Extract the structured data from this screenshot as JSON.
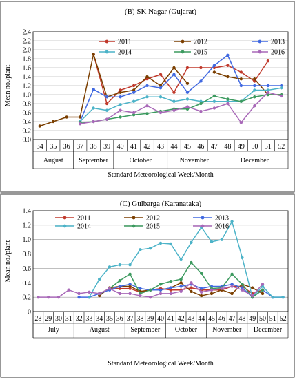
{
  "chart_data": [
    {
      "type": "line",
      "title": "(B) SK Nagar (Gujarat)",
      "xlabel": "Standard Meteorological Week/Month",
      "ylabel": "Mean no./plant",
      "ylim": [
        0,
        2.4
      ],
      "yticks": [
        "0.0",
        "0.2",
        "0.4",
        "0.6",
        "0.8",
        "1.0",
        "1.2",
        "1.4",
        "1.6",
        "1.8",
        "2.0",
        "2.2",
        "2.4"
      ],
      "x": [
        "34",
        "35",
        "36",
        "37",
        "38",
        "39",
        "40",
        "41",
        "42",
        "43",
        "44",
        "45",
        "46",
        "47",
        "48",
        "49",
        "50",
        "51",
        "52"
      ],
      "months": [
        {
          "label": "August",
          "from": 0,
          "to": 3
        },
        {
          "label": "September",
          "from": 3,
          "to": 6
        },
        {
          "label": "October",
          "from": 6,
          "to": 10
        },
        {
          "label": "November",
          "from": 10,
          "to": 14
        },
        {
          "label": "December",
          "from": 14,
          "to": 19
        }
      ],
      "grid": true,
      "legend_position": "top",
      "series": [
        {
          "name": "2011",
          "color": "#c0392b",
          "values": [
            null,
            null,
            null,
            null,
            1.9,
            0.8,
            1.1,
            1.2,
            1.35,
            1.45,
            1.05,
            1.6,
            1.6,
            1.6,
            1.65,
            1.5,
            1.3,
            1.75,
            null
          ]
        },
        {
          "name": "2012",
          "color": "#7b3f00",
          "values": [
            0.3,
            0.4,
            0.5,
            0.5,
            1.9,
            0.95,
            1.05,
            1.1,
            1.4,
            1.2,
            1.6,
            1.25,
            null,
            1.5,
            1.4,
            1.35,
            1.35,
            1.0,
            1.0
          ]
        },
        {
          "name": "2013",
          "color": "#4169e1",
          "values": [
            null,
            null,
            null,
            0.4,
            1.12,
            0.95,
            0.95,
            1.05,
            1.2,
            1.15,
            1.45,
            1.05,
            1.3,
            1.65,
            1.88,
            1.2,
            1.2,
            1.2,
            1.2
          ]
        },
        {
          "name": "2014",
          "color": "#4cb3c8",
          "values": [
            null,
            null,
            null,
            0.4,
            0.7,
            0.65,
            0.78,
            0.85,
            0.95,
            0.95,
            0.85,
            0.9,
            0.85,
            0.85,
            0.85,
            0.85,
            1.1,
            1.1,
            1.15
          ]
        },
        {
          "name": "2015",
          "color": "#3c9a5f",
          "values": [
            null,
            null,
            null,
            0.38,
            0.4,
            0.45,
            0.5,
            0.55,
            0.58,
            0.63,
            0.68,
            0.68,
            0.8,
            0.97,
            0.9,
            0.85,
            0.95,
            1.0,
            1.0
          ]
        },
        {
          "name": "2016",
          "color": "#a868b8",
          "values": [
            null,
            null,
            null,
            0.35,
            0.4,
            0.45,
            0.65,
            0.6,
            0.75,
            0.6,
            0.65,
            0.73,
            0.63,
            0.7,
            0.8,
            0.38,
            0.75,
            1.05,
            0.97
          ]
        }
      ]
    },
    {
      "type": "line",
      "title": "(C) Gulbarga (Karanataka)",
      "xlabel": "Standard Meteorological Week/Month",
      "ylabel": "Mean no./plant",
      "ylim": [
        0,
        1.4
      ],
      "yticks": [
        "0",
        "0.2",
        "0.4",
        "0.6",
        "0.8",
        "1.0",
        "1.2",
        "1.4"
      ],
      "x": [
        "28",
        "29",
        "30",
        "31",
        "32",
        "33",
        "34",
        "35",
        "36",
        "37",
        "38",
        "39",
        "40",
        "41",
        "42",
        "43",
        "44",
        "45",
        "46",
        "47",
        "48",
        "49",
        "50",
        "51",
        "52"
      ],
      "months": [
        {
          "label": "July",
          "from": 0,
          "to": 4
        },
        {
          "label": "August",
          "from": 4,
          "to": 9
        },
        {
          "label": "September",
          "from": 9,
          "to": 13
        },
        {
          "label": "October",
          "from": 13,
          "to": 17
        },
        {
          "label": "November",
          "from": 17,
          "to": 21
        },
        {
          "label": "December",
          "from": 21,
          "to": 25
        }
      ],
      "grid": true,
      "legend_position": "top",
      "series": [
        {
          "name": "2011",
          "color": "#c0392b",
          "values": [
            null,
            null,
            null,
            null,
            null,
            null,
            0.25,
            0.32,
            0.32,
            0.32,
            0.27,
            0.3,
            0.32,
            0.3,
            0.3,
            0.33,
            0.3,
            0.3,
            0.3,
            0.35,
            0.35,
            0.25,
            0.3,
            null,
            null
          ]
        },
        {
          "name": "2012",
          "color": "#7b3f00",
          "values": [
            null,
            null,
            null,
            null,
            null,
            null,
            0.22,
            0.33,
            0.35,
            0.35,
            0.28,
            0.3,
            0.3,
            0.33,
            0.4,
            0.28,
            0.22,
            0.25,
            0.3,
            0.25,
            0.38,
            0.33,
            0.25,
            null,
            null
          ]
        },
        {
          "name": "2013",
          "color": "#4169e1",
          "values": [
            null,
            null,
            null,
            null,
            0.2,
            0.2,
            0.25,
            0.3,
            0.35,
            0.38,
            0.32,
            0.3,
            0.3,
            0.33,
            0.35,
            0.38,
            0.32,
            0.35,
            0.35,
            0.38,
            0.33,
            0.2,
            0.3,
            0.2,
            0.2
          ]
        },
        {
          "name": "2014",
          "color": "#4cb3c8",
          "values": [
            null,
            null,
            null,
            null,
            null,
            0.2,
            0.45,
            0.62,
            0.65,
            0.65,
            0.86,
            0.88,
            0.95,
            0.94,
            0.72,
            0.96,
            1.17,
            0.97,
            1.0,
            1.25,
            0.75,
            0.2,
            0.35,
            0.2,
            0.2
          ]
        },
        {
          "name": "2015",
          "color": "#3c9a5f",
          "values": [
            null,
            null,
            null,
            null,
            null,
            null,
            0.25,
            0.32,
            0.43,
            0.52,
            0.25,
            0.3,
            0.38,
            0.42,
            0.45,
            0.68,
            0.53,
            0.32,
            0.33,
            0.52,
            0.38,
            0.2,
            0.3,
            null,
            null
          ]
        },
        {
          "name": "2016",
          "color": "#a868b8",
          "values": [
            0.2,
            0.2,
            0.2,
            0.3,
            0.25,
            0.27,
            0.25,
            0.32,
            0.25,
            0.25,
            0.22,
            0.2,
            0.25,
            0.25,
            0.28,
            0.4,
            0.27,
            0.3,
            0.32,
            0.35,
            0.3,
            0.22,
            0.38,
            null,
            null
          ]
        }
      ]
    }
  ]
}
